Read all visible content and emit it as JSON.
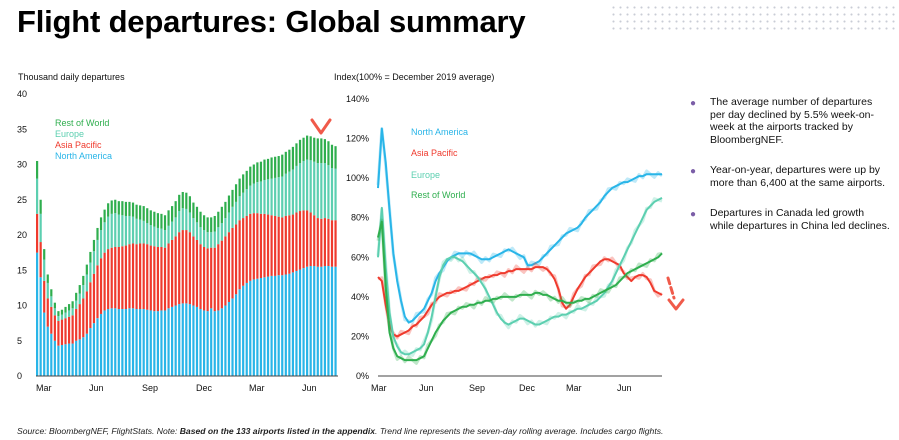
{
  "page": {
    "title": "Flight departures: Global summary",
    "bullets": [
      "The average number of departures per day declined by 5.5% week-on-week at the airports tracked by BloombergNEF.",
      "Year-on-year, departures were up by more than 6,400 at the same airports.",
      "Departures in Canada led growth while departures in China led declines."
    ],
    "source_pre": "Source: BloombergNEF, FlightStats. Note: ",
    "source_bold": "Based on the 133 airports listed in the appendix",
    "source_post": ". Trend line represents the seven-day rolling average. Includes cargo flights."
  },
  "colors": {
    "north_america": "#29b5e8",
    "asia_pacific": "#ef3a2d",
    "europe": "#5ccfb0",
    "rest_of_world": "#2fae4e",
    "bullet": "#7b5ea7",
    "arrow": "#f05a4a"
  },
  "chart_data": [
    {
      "type": "bar",
      "stacked": true,
      "ylabel": "Thousand daily departures",
      "ylim": [
        0,
        40
      ],
      "yticks": [
        "0",
        "5",
        "10",
        "15",
        "20",
        "25",
        "30",
        "35",
        "40"
      ],
      "xticks": [
        "Mar",
        "Jun",
        "Sep",
        "Dec",
        "Mar",
        "Jun"
      ],
      "legend": [
        "Rest of World",
        "Europe",
        "Asia Pacific",
        "North America"
      ],
      "series": [
        {
          "name": "North America",
          "values": [
            17.5,
            14,
            9,
            7,
            6,
            5,
            4.3,
            4.4,
            4.5,
            4.6,
            4.6,
            5,
            5.2,
            5.5,
            6,
            6.8,
            7.5,
            8.2,
            8.8,
            9.3,
            9.5,
            9.6,
            9.6,
            9.5,
            9.5,
            9.5,
            9.6,
            9.6,
            9.5,
            9.5,
            9.5,
            9.4,
            9.3,
            9.2,
            9.2,
            9.3,
            9.3,
            9.6,
            9.8,
            10,
            10.2,
            10.3,
            10.3,
            10.2,
            10,
            9.8,
            9.5,
            9.3,
            9.2,
            9.6,
            9.2,
            9.3,
            9.6,
            10,
            10.5,
            11,
            11.6,
            12.3,
            12.8,
            13.2,
            13.5,
            13.7,
            13.8,
            13.9,
            14,
            14.1,
            14.2,
            14.2,
            14.3,
            14.3,
            14.4,
            14.5,
            14.7,
            14.9,
            15.1,
            15.3,
            15.5,
            15.6,
            15.6,
            15.5,
            15.5,
            15.6,
            15.6,
            15.5,
            15.5
          ]
        },
        {
          "name": "Asia Pacific",
          "values": [
            5.5,
            5,
            4.5,
            4,
            3.8,
            3.6,
            3.5,
            3.6,
            3.7,
            3.8,
            4,
            4.5,
            5,
            5.5,
            6,
            6.5,
            7,
            7.5,
            7.9,
            8.2,
            8.5,
            8.6,
            8.7,
            8.8,
            8.9,
            9,
            9.1,
            9.2,
            9.2,
            9.3,
            9.3,
            9.3,
            9.2,
            9.2,
            9.1,
            9,
            8.9,
            9.2,
            9.5,
            9.8,
            10.2,
            10.4,
            10.4,
            10.2,
            9.8,
            9.5,
            9.2,
            9,
            8.9,
            8.6,
            9,
            9.4,
            9.6,
            9.8,
            9.9,
            10,
            9.9,
            9.8,
            9.6,
            9.5,
            9.5,
            9.4,
            9.3,
            9.1,
            9,
            8.8,
            8.6,
            8.5,
            8.3,
            8.2,
            8.3,
            8.3,
            8.2,
            8.3,
            8.3,
            8.2,
            8,
            7.6,
            7.2,
            6.9,
            6.8,
            6.8,
            6.7,
            6.6,
            6.6
          ]
        },
        {
          "name": "Europe",
          "values": [
            5,
            4,
            3,
            2.2,
            1.5,
            1,
            0.7,
            0.7,
            0.8,
            0.9,
            1,
            1.2,
            1.5,
            1.9,
            2.4,
            2.8,
            3.2,
            3.6,
            4,
            4.3,
            4.6,
            4.8,
            4.8,
            4.6,
            4.4,
            4.2,
            4,
            3.8,
            3.6,
            3.4,
            3.2,
            3,
            2.9,
            2.8,
            2.7,
            2.6,
            2.5,
            2.5,
            2.6,
            2.7,
            3,
            3.1,
            3,
            2.8,
            2.6,
            2.5,
            2.4,
            2.4,
            2.3,
            2.2,
            2.3,
            2.4,
            2.5,
            2.6,
            2.8,
            3,
            3.2,
            3.4,
            3.6,
            3.8,
            4,
            4.2,
            4.4,
            4.6,
            4.8,
            5,
            5.2,
            5.4,
            5.6,
            5.8,
            6,
            6.2,
            6.4,
            6.6,
            6.8,
            7,
            7.2,
            7.4,
            7.6,
            7.8,
            7.9,
            7.8,
            7.6,
            7.4,
            7.3
          ]
        },
        {
          "name": "Rest of World",
          "values": [
            2.5,
            2,
            1.5,
            1.2,
            1,
            0.8,
            0.7,
            0.7,
            0.8,
            0.9,
            1,
            1.1,
            1.2,
            1.3,
            1.4,
            1.5,
            1.6,
            1.7,
            1.8,
            1.8,
            1.9,
            1.9,
            1.9,
            1.9,
            2,
            2,
            2,
            2,
            2,
            2,
            2.1,
            2.1,
            2.1,
            2.1,
            2.1,
            2.1,
            2.1,
            2.2,
            2.2,
            2.3,
            2.3,
            2.3,
            2.3,
            2.3,
            2.2,
            2.2,
            2.2,
            2.1,
            2.1,
            2.1,
            2.2,
            2.2,
            2.3,
            2.3,
            2.4,
            2.4,
            2.5,
            2.5,
            2.6,
            2.6,
            2.7,
            2.7,
            2.8,
            2.8,
            2.9,
            2.9,
            3,
            3,
            3,
            3.1,
            3.1,
            3.1,
            3.2,
            3.2,
            3.3,
            3.3,
            3.4,
            3.4,
            3.4,
            3.5,
            3.5,
            3.4,
            3.4,
            3.3,
            3.2
          ]
        }
      ]
    },
    {
      "type": "line",
      "ylabel": "Index(100% = December 2019 average)",
      "ylim": [
        0,
        140
      ],
      "yticks": [
        "0%",
        "20%",
        "40%",
        "60%",
        "80%",
        "100%",
        "120%",
        "140%"
      ],
      "xticks": [
        "Mar",
        "Jun",
        "Sep",
        "Dec",
        "Mar",
        "Jun"
      ],
      "legend": [
        "North America",
        "Asia Pacific",
        "Europe",
        "Rest of World"
      ],
      "series": [
        {
          "name": "North America",
          "values": [
            95,
            125,
            108,
            84,
            62,
            48,
            38,
            30,
            27,
            28,
            30,
            32,
            34,
            38,
            42,
            48,
            52,
            55,
            58,
            60,
            61,
            62,
            62,
            62,
            62,
            61,
            60,
            59,
            59,
            59,
            60,
            61,
            62,
            63,
            64,
            63,
            62,
            61,
            60,
            56,
            56,
            57,
            58,
            60,
            62,
            64,
            66,
            68,
            70,
            72,
            73,
            74,
            75,
            77,
            80,
            82,
            84,
            86,
            88,
            91,
            93,
            95,
            96,
            97,
            98,
            98,
            99,
            100,
            101,
            101,
            102,
            102,
            102,
            102,
            102
          ]
        },
        {
          "name": "Asia Pacific",
          "values": [
            50,
            48,
            36,
            26,
            21,
            20,
            21,
            22,
            23,
            25,
            26,
            28,
            30,
            33,
            36,
            38,
            40,
            41,
            42,
            42,
            43,
            43,
            44,
            45,
            46,
            47,
            48,
            49,
            50,
            50,
            51,
            51,
            52,
            52,
            53,
            53,
            54,
            54,
            54,
            54,
            54,
            55,
            55,
            55,
            54,
            52,
            49,
            44,
            37,
            34,
            36,
            40,
            44,
            47,
            50,
            52,
            54,
            56,
            58,
            59,
            59,
            58,
            57,
            56,
            52,
            50,
            48,
            50,
            51,
            51,
            50,
            47,
            43,
            42,
            41
          ]
        },
        {
          "name": "Europe",
          "values": [
            60,
            85,
            55,
            32,
            20,
            15,
            12,
            11,
            11,
            12,
            13,
            14,
            16,
            22,
            30,
            40,
            50,
            56,
            59,
            60,
            60,
            59,
            58,
            56,
            54,
            52,
            50,
            47,
            44,
            40,
            36,
            32,
            29,
            27,
            26,
            27,
            28,
            29,
            29,
            28,
            27,
            26,
            26,
            27,
            28,
            29,
            30,
            30,
            31,
            31,
            32,
            33,
            34,
            34,
            35,
            36,
            37,
            38,
            40,
            42,
            45,
            48,
            52,
            56,
            60,
            64,
            68,
            72,
            76,
            80,
            84,
            86,
            88,
            89,
            90
          ]
        },
        {
          "name": "Rest of World",
          "values": [
            70,
            78,
            45,
            22,
            14,
            10,
            9,
            8,
            8,
            8,
            8,
            9,
            10,
            14,
            18,
            22,
            25,
            28,
            30,
            32,
            33,
            34,
            35,
            35,
            36,
            36,
            37,
            37,
            38,
            38,
            39,
            39,
            40,
            40,
            40,
            40,
            40,
            41,
            41,
            41,
            41,
            42,
            42,
            41,
            41,
            40,
            39,
            38,
            38,
            37,
            37,
            37,
            38,
            38,
            39,
            39,
            40,
            41,
            42,
            43,
            44,
            45,
            46,
            48,
            50,
            52,
            53,
            54,
            55,
            56,
            57,
            58,
            59,
            60,
            62
          ]
        }
      ]
    }
  ]
}
